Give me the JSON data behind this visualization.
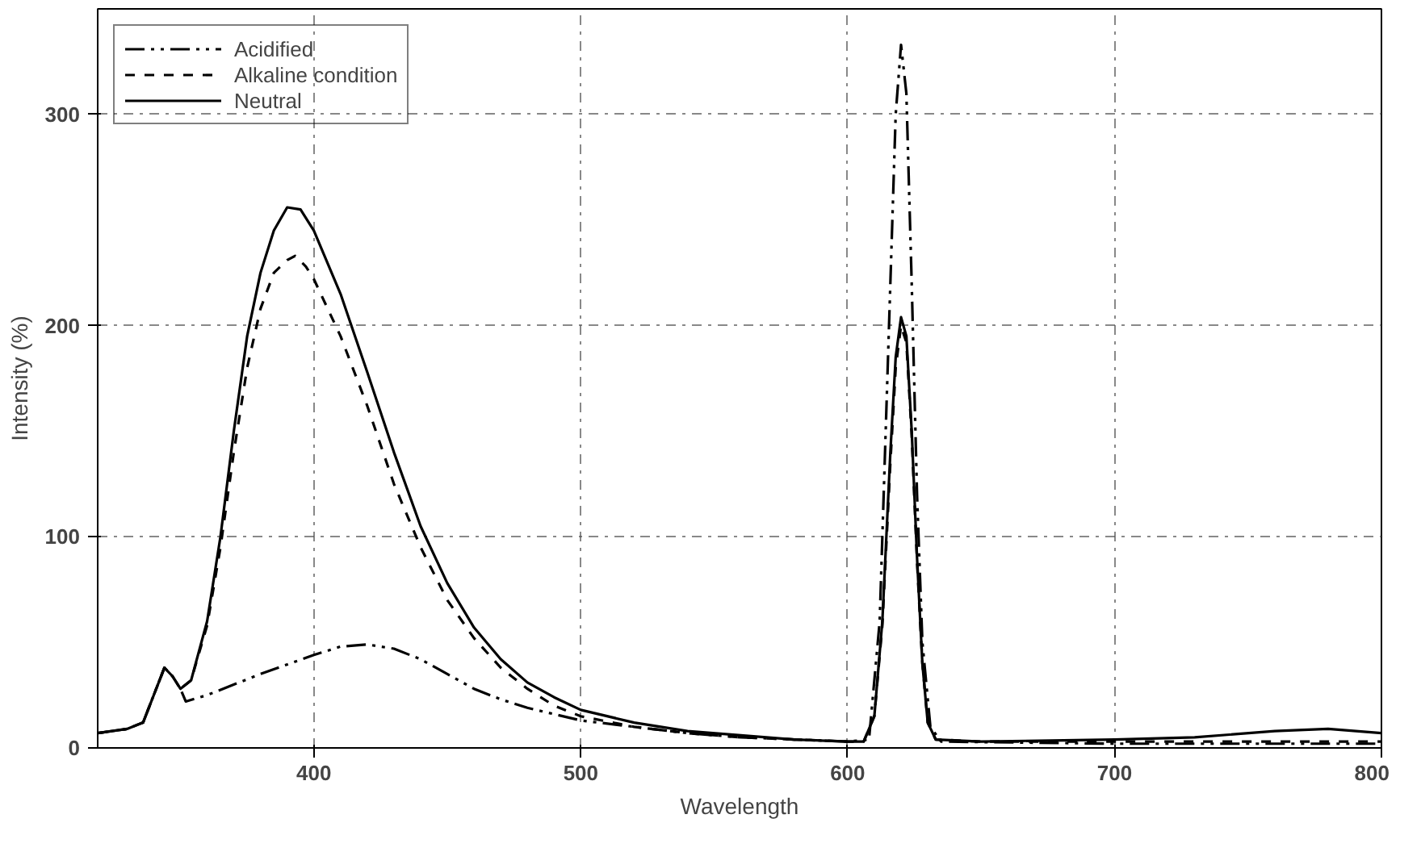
{
  "chart_data": {
    "type": "line",
    "xlabel": "Wavelength",
    "ylabel": "Intensity (%)",
    "xlim": [
      319,
      800
    ],
    "ylim": [
      0,
      350
    ],
    "xticks": [
      400,
      500,
      600,
      700,
      800
    ],
    "yticks": [
      0,
      100,
      200,
      300
    ],
    "grid": true,
    "legend": "top left",
    "marker": "none",
    "series": [
      {
        "name": "Acidified",
        "color": "#000000",
        "line_style": "dashdot",
        "x": [
          319,
          330,
          336,
          340,
          344,
          347,
          350,
          352,
          360,
          380,
          400,
          410,
          420,
          430,
          440,
          450,
          460,
          470,
          480,
          490,
          500,
          520,
          540,
          560,
          580,
          600,
          608,
          612,
          615,
          618,
          620,
          622,
          624,
          626,
          628,
          631,
          635,
          700,
          750,
          800
        ],
        "values": [
          7,
          9,
          12,
          25,
          38,
          34,
          28,
          22,
          25,
          35,
          44,
          48,
          49,
          47,
          42,
          35,
          28,
          23,
          19,
          16,
          13,
          10,
          7,
          5,
          4,
          3,
          4,
          60,
          180,
          300,
          333,
          310,
          220,
          120,
          50,
          10,
          3,
          2,
          2,
          2
        ]
      },
      {
        "name": "Alkaline condition",
        "color": "#000000",
        "line_style": "dashed",
        "x": [
          319,
          330,
          336,
          340,
          344,
          347,
          350,
          354,
          360,
          365,
          370,
          375,
          380,
          385,
          390,
          393,
          397,
          400,
          410,
          420,
          430,
          440,
          450,
          460,
          470,
          480,
          490,
          500,
          520,
          540,
          560,
          580,
          600,
          606,
          610,
          613,
          616,
          618,
          620,
          622,
          624,
          626,
          628,
          630,
          633,
          650,
          700,
          750,
          800
        ],
        "values": [
          7,
          9,
          12,
          25,
          38,
          34,
          28,
          32,
          58,
          95,
          140,
          180,
          208,
          225,
          231,
          233,
          228,
          222,
          195,
          162,
          125,
          95,
          70,
          52,
          38,
          28,
          20,
          15,
          10,
          7,
          5,
          4,
          3,
          3,
          15,
          58,
          135,
          180,
          200,
          192,
          148,
          88,
          40,
          12,
          4,
          3,
          3,
          3,
          3
        ]
      },
      {
        "name": "Neutral",
        "color": "#000000",
        "line_style": "solid",
        "x": [
          319,
          330,
          336,
          340,
          344,
          347,
          350,
          354,
          360,
          365,
          370,
          375,
          380,
          385,
          390,
          395,
          400,
          410,
          420,
          430,
          440,
          450,
          460,
          470,
          480,
          490,
          500,
          520,
          540,
          560,
          580,
          600,
          606,
          610,
          613,
          616,
          618,
          620,
          622,
          624,
          626,
          628,
          630,
          633,
          650,
          700,
          730,
          760,
          780,
          800
        ],
        "values": [
          7,
          9,
          12,
          25,
          38,
          34,
          28,
          32,
          60,
          100,
          150,
          195,
          225,
          245,
          256,
          255,
          245,
          215,
          178,
          140,
          105,
          78,
          57,
          42,
          31,
          24,
          18,
          12,
          8,
          6,
          4,
          3,
          3,
          15,
          60,
          140,
          185,
          204,
          195,
          150,
          90,
          40,
          12,
          4,
          3,
          4,
          5,
          8,
          9,
          7
        ]
      }
    ]
  }
}
